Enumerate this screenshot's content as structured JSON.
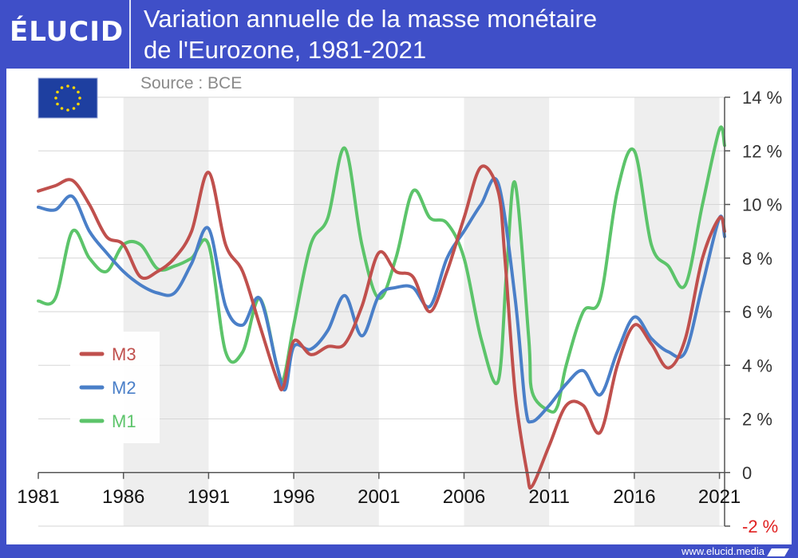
{
  "brand": "ÉLUCID",
  "header": {
    "title_line1": "Variation annuelle de la masse monétaire",
    "title_line2": "de l'Eurozone, 1981-2021",
    "source": "Source : BCE"
  },
  "footer": {
    "url": "www.elucid.media"
  },
  "colors": {
    "background": "#3f4fc8",
    "M3": "#c0504d",
    "M2": "#4a7fc8",
    "M1": "#5cc46a",
    "negative_label": "#e02020",
    "band": "#eeeeee"
  },
  "chart_data": {
    "type": "line",
    "title": "Variation annuelle de la masse monétaire de l'Eurozone, 1981-2021",
    "xlabel": "",
    "ylabel": "",
    "xlim": [
      1981,
      2021.3
    ],
    "ylim": [
      -2,
      14
    ],
    "x_ticks": [
      1981,
      1986,
      1991,
      1996,
      2001,
      2006,
      2011,
      2016,
      2021
    ],
    "y_ticks": [
      14,
      12,
      10,
      8,
      6,
      4,
      2,
      0,
      -2
    ],
    "y_tick_labels": [
      "14 %",
      "12 %",
      "10 %",
      "8 %",
      "6 %",
      "4 %",
      "2 %",
      "0",
      "-2 %"
    ],
    "legend_position": "left-middle",
    "series": [
      {
        "name": "M3",
        "color": "#c0504d",
        "x": [
          1981,
          1982,
          1983,
          1984,
          1985,
          1986,
          1987,
          1988,
          1989,
          1990,
          1991,
          1992,
          1993,
          1994,
          1995,
          1995.4,
          1996,
          1997,
          1998,
          1999,
          2000,
          2001,
          2002,
          2003,
          2004,
          2005,
          2006,
          2007,
          2008,
          2008.4,
          2009,
          2009.7,
          2010,
          2011,
          2012,
          2013,
          2014,
          2015,
          2016,
          2017,
          2018,
          2019,
          2020,
          2021,
          2021.3
        ],
        "values": [
          10.5,
          10.7,
          10.9,
          10.0,
          8.8,
          8.5,
          7.3,
          7.5,
          8.0,
          9.0,
          11.2,
          8.5,
          7.5,
          5.5,
          3.5,
          3.2,
          4.9,
          4.4,
          4.7,
          4.8,
          6.2,
          8.2,
          7.5,
          7.3,
          6.0,
          7.5,
          9.5,
          11.4,
          10.5,
          8.0,
          3.0,
          0.0,
          -0.5,
          1.0,
          2.5,
          2.5,
          1.5,
          4.0,
          5.5,
          4.8,
          3.9,
          5.0,
          8.0,
          9.5,
          9.0
        ]
      },
      {
        "name": "M2",
        "color": "#4a7fc8",
        "x": [
          1981,
          1982,
          1983,
          1984,
          1985,
          1986,
          1987,
          1988,
          1989,
          1990,
          1991,
          1992,
          1993,
          1994,
          1995,
          1995.5,
          1996,
          1997,
          1998,
          1999,
          2000,
          2001,
          2002,
          2003,
          2004,
          2005,
          2006,
          2007,
          2008,
          2009,
          2009.6,
          2010,
          2011,
          2012,
          2013,
          2014,
          2015,
          2016,
          2017,
          2018,
          2019,
          2020,
          2021,
          2021.3
        ],
        "values": [
          9.9,
          9.8,
          10.3,
          9.0,
          8.2,
          7.5,
          7.0,
          6.7,
          6.7,
          7.8,
          9.1,
          6.2,
          5.5,
          6.5,
          4.0,
          3.1,
          4.7,
          4.6,
          5.3,
          6.6,
          5.1,
          6.6,
          6.9,
          6.9,
          6.2,
          8.0,
          9.0,
          10.0,
          10.8,
          6.5,
          2.5,
          1.9,
          2.5,
          3.3,
          3.8,
          2.9,
          4.5,
          5.8,
          5.0,
          4.5,
          4.5,
          7.0,
          9.5,
          8.8
        ]
      },
      {
        "name": "M1",
        "color": "#5cc46a",
        "x": [
          1981,
          1982,
          1983,
          1984,
          1985,
          1986,
          1987,
          1988,
          1989,
          1990,
          1991,
          1992,
          1993,
          1994,
          1995,
          1995.4,
          1996,
          1997,
          1998,
          1999,
          2000,
          2001,
          2002,
          2003,
          2004,
          2005,
          2006,
          2007,
          2008,
          2008.5,
          2009,
          2009.8,
          2010,
          2011,
          2011.5,
          2012,
          2013,
          2014,
          2015,
          2016,
          2017,
          2018,
          2019,
          2020,
          2021,
          2021.3
        ],
        "values": [
          6.4,
          6.5,
          9.0,
          8.0,
          7.5,
          8.5,
          8.5,
          7.6,
          7.7,
          8.0,
          8.5,
          4.5,
          4.5,
          6.5,
          4.0,
          3.5,
          5.5,
          8.5,
          9.5,
          12.1,
          8.5,
          6.5,
          8.0,
          10.5,
          9.5,
          9.3,
          8.0,
          5.0,
          3.4,
          7.5,
          10.8,
          5.0,
          3.0,
          2.3,
          2.5,
          4.0,
          6.0,
          6.5,
          10.5,
          12.0,
          8.5,
          7.7,
          7.0,
          10.0,
          12.8,
          12.2
        ]
      }
    ]
  }
}
